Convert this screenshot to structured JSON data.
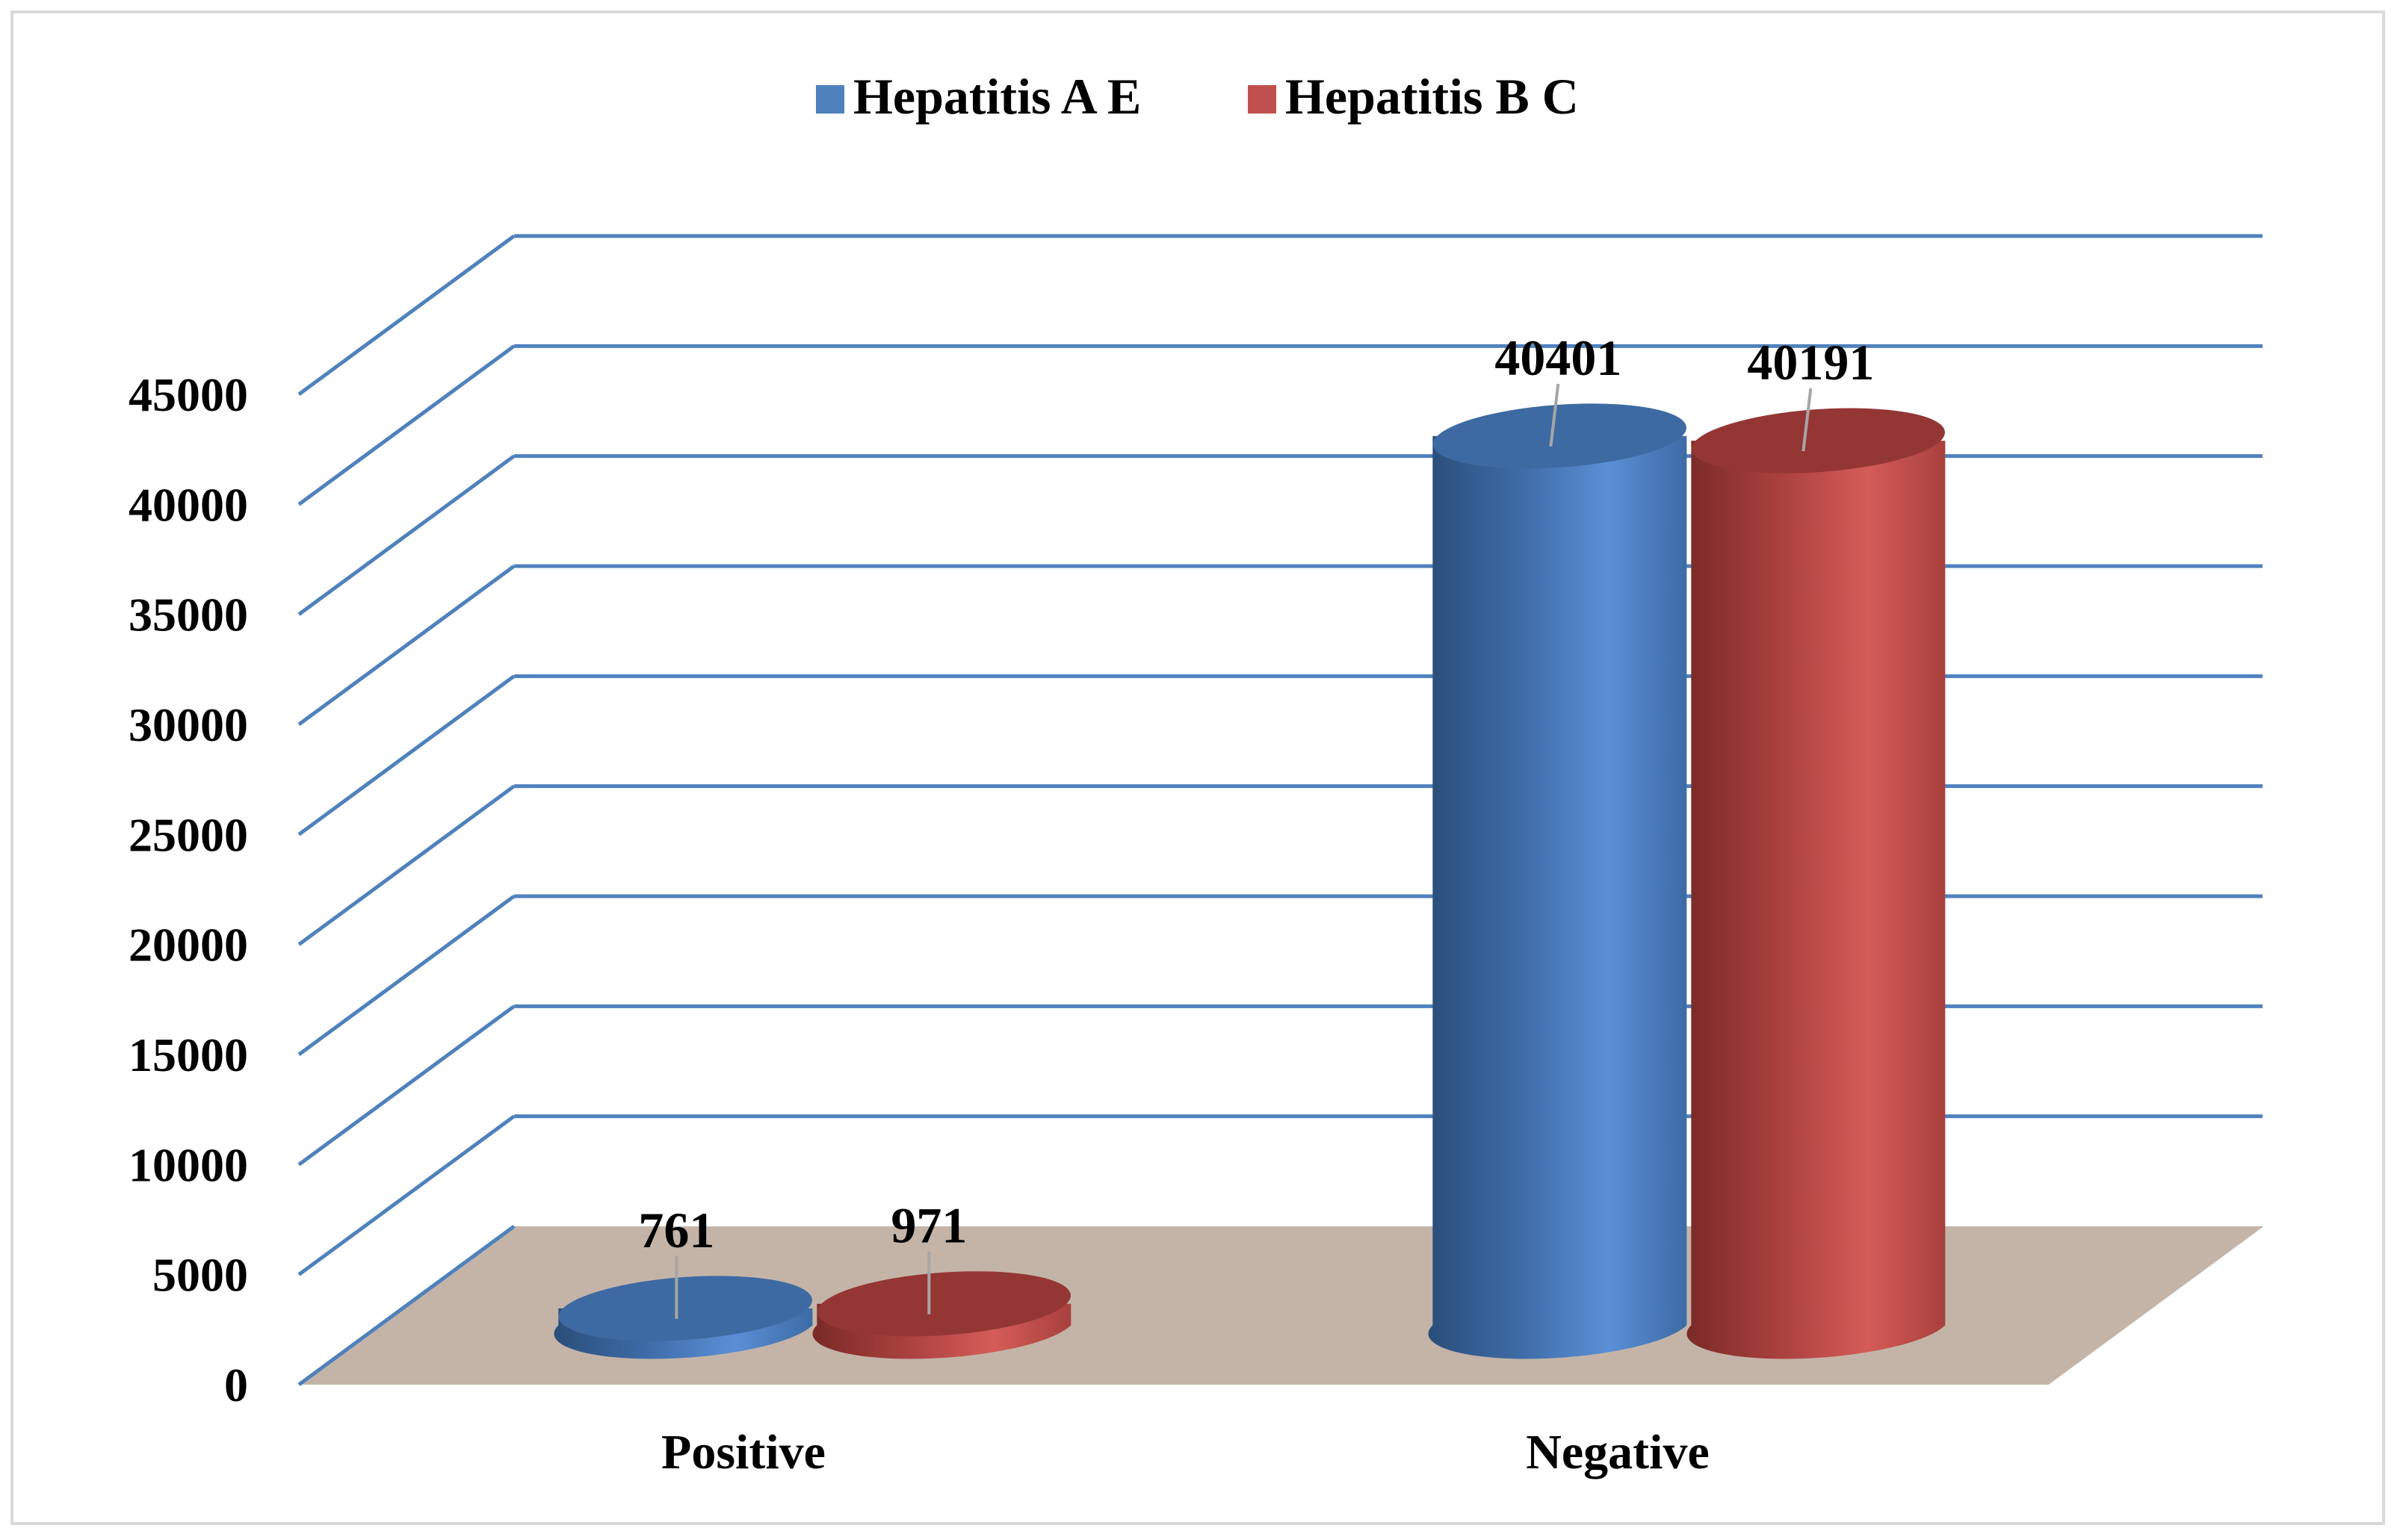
{
  "chart_data": {
    "type": "bar",
    "style": "3d-cylinder",
    "categories": [
      "Positive",
      "Negative"
    ],
    "series": [
      {
        "name": "Hepatitis A E",
        "values": [
          761,
          40401
        ],
        "color": "#4f81bd"
      },
      {
        "name": "Hepatitis B C",
        "values": [
          971,
          40191
        ],
        "color": "#c0504d"
      }
    ],
    "title": "",
    "xlabel": "",
    "ylabel": "",
    "ylim": [
      0,
      45000
    ],
    "yticks": [
      "0",
      "5000",
      "10000",
      "15000",
      "20000",
      "25000",
      "30000",
      "35000",
      "40000",
      "45000"
    ],
    "grid": true,
    "gridline_color": "#4f81bd",
    "floor_color": "#c4b4a8",
    "legend_position": "top"
  }
}
